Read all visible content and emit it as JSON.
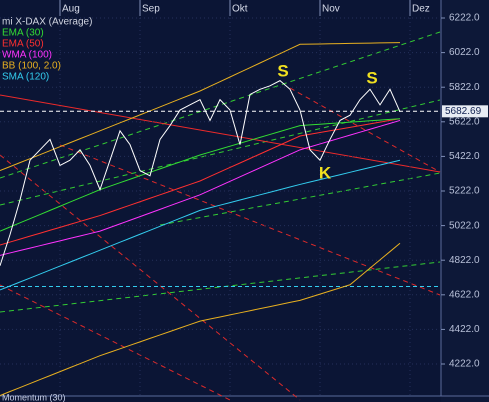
{
  "chart_data": {
    "type": "line",
    "categories": [
      null,
      null,
      null,
      null,
      null,
      null,
      "Aug",
      null,
      null,
      null,
      null,
      null,
      null,
      null,
      "Sep",
      null,
      null,
      null,
      null,
      null,
      null,
      null,
      null,
      "Okt",
      null,
      null,
      null,
      null,
      null,
      null,
      null,
      null,
      "Nov",
      null,
      null,
      null,
      null,
      null,
      null,
      null,
      null,
      "Dez"
    ],
    "series": [
      {
        "name": "mi X-DAX (Average)",
        "color": "#ffffff",
        "values": [
          4790,
          4970,
          5170,
          5400,
          5460,
          5520,
          5370,
          5400,
          5460,
          5370,
          5230,
          5400,
          5570,
          5490,
          5340,
          5310,
          5520,
          5600,
          5690,
          5720,
          5750,
          5630,
          5750,
          5690,
          5490,
          5780,
          5810,
          5830,
          5860,
          5810,
          5690,
          5460,
          5400,
          5520,
          5630,
          5660,
          5750,
          5810,
          5720,
          5810,
          5680,
          null
        ]
      },
      {
        "name": "EMA (30)",
        "color": "#33dd33",
        "values": [
          4990,
          5014,
          5038,
          5062,
          5086,
          5110,
          5134,
          5158,
          5182,
          5206,
          5230,
          5250,
          5270,
          5290,
          5310,
          5330,
          5350,
          5370,
          5390,
          5410,
          5430,
          5447,
          5464,
          5481,
          5498,
          5515,
          5532,
          5549,
          5566,
          5583,
          5600,
          5604,
          5608,
          5612,
          5616,
          5620,
          5624,
          5628,
          5632,
          5636,
          5640,
          null
        ]
      },
      {
        "name": "EMA (50)",
        "color": "#ff3030",
        "values": [
          4910,
          4927,
          4944,
          4961,
          4978,
          4995,
          5012,
          5029,
          5046,
          5063,
          5080,
          5100,
          5120,
          5140,
          5160,
          5180,
          5200,
          5220,
          5240,
          5260,
          5280,
          5306,
          5332,
          5358,
          5384,
          5410,
          5436,
          5462,
          5488,
          5514,
          5540,
          5550,
          5560,
          5570,
          5580,
          5590,
          5600,
          5610,
          5620,
          5630,
          5640,
          null
        ]
      },
      {
        "name": "WMA (100)",
        "color": "#ff33ff",
        "values": [
          4850,
          4864,
          4878,
          4892,
          4906,
          4920,
          4934,
          4948,
          4962,
          4976,
          4990,
          5011,
          5032,
          5053,
          5074,
          5095,
          5116,
          5137,
          5158,
          5179,
          5200,
          5226,
          5252,
          5278,
          5304,
          5330,
          5356,
          5382,
          5408,
          5434,
          5460,
          5477,
          5494,
          5511,
          5528,
          5545,
          5562,
          5579,
          5596,
          5613,
          5630,
          null
        ]
      },
      {
        "name": "BB (100, 2.0)",
        "color": "#e8b020",
        "values": [
          5340,
          5363,
          5386,
          5409,
          5432,
          5455,
          5478,
          5501,
          5524,
          5547,
          5570,
          5593,
          5616,
          5639,
          5662,
          5685,
          5708,
          5731,
          5754,
          5777,
          5800,
          5827,
          5854,
          5881,
          5908,
          5935,
          5962,
          5989,
          6016,
          6043,
          6070,
          6071,
          6072,
          6073,
          6074,
          6075,
          6076,
          6077,
          6078,
          6079,
          6080,
          null
        ],
        "lower": [
          4040,
          4063,
          4086,
          4109,
          4132,
          4155,
          4178,
          4201,
          4224,
          4247,
          4270,
          4290,
          4310,
          4330,
          4350,
          4370,
          4390,
          4410,
          4430,
          4450,
          4470,
          4482,
          4494,
          4506,
          4518,
          4530,
          4542,
          4554,
          4566,
          4578,
          4590,
          4608,
          4626,
          4644,
          4662,
          4680,
          4728,
          4776,
          4824,
          4872,
          4920,
          null
        ]
      },
      {
        "name": "SMA (120)",
        "color": "#33ccee",
        "values": [
          4650,
          4673,
          4696,
          4719,
          4742,
          4765,
          4788,
          4811,
          4834,
          4857,
          4880,
          4903,
          4926,
          4949,
          4972,
          4995,
          5018,
          5041,
          5064,
          5087,
          5110,
          5125,
          5140,
          5155,
          5170,
          5185,
          5200,
          5215,
          5230,
          5245,
          5260,
          5274,
          5288,
          5302,
          5316,
          5330,
          5344,
          5358,
          5372,
          5386,
          5400,
          null
        ]
      }
    ],
    "ylim": [
      4040,
      6270
    ],
    "yticks": [
      {
        "value": 4222,
        "label": "4222.0"
      },
      {
        "value": 4422,
        "label": "4422.0"
      },
      {
        "value": 4622,
        "label": "4622.0"
      },
      {
        "value": 4822,
        "label": "4822.0"
      },
      {
        "value": 5022,
        "label": "5022.0"
      },
      {
        "value": 5222,
        "label": "5222.0"
      },
      {
        "value": 5422,
        "label": "5422.0"
      },
      {
        "value": 5622,
        "label": "5622.0"
      },
      {
        "value": 5822,
        "label": "5822.0"
      },
      {
        "value": 6022,
        "label": "6022.0"
      },
      {
        "value": 6222,
        "label": "6222.0"
      }
    ],
    "last_value": 5682.69,
    "reference_line": 4670,
    "grid": true,
    "annotations": [
      "S",
      "S",
      "K"
    ],
    "lower_panel_title": "Momentum (30)"
  }
}
